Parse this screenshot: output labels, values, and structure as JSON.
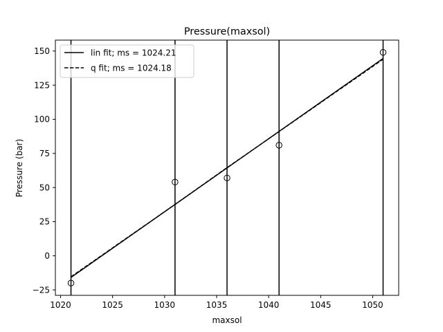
{
  "chart_data": {
    "type": "line",
    "title": "Pressure(maxsol)",
    "xlabel": "maxsol",
    "ylabel": "Pressure (bar)",
    "xlim": [
      1019.5,
      1052.5
    ],
    "ylim": [
      -29,
      158
    ],
    "xticks": [
      1020,
      1025,
      1030,
      1035,
      1040,
      1045,
      1050
    ],
    "yticks": [
      -25,
      0,
      25,
      50,
      75,
      100,
      125,
      150
    ],
    "grid": false,
    "legend_position": "top-left",
    "points": {
      "x": [
        1021,
        1031,
        1036,
        1041,
        1051
      ],
      "y": [
        -20,
        54,
        57,
        81,
        149
      ]
    },
    "vlines": [
      1021,
      1031,
      1036,
      1041,
      1051
    ],
    "series": [
      {
        "name": "lin fit; ms = 1024.21",
        "style": "solid",
        "x": [
          1021,
          1051
        ],
        "y": [
          -15.9,
          144.6
        ]
      },
      {
        "name": "q fit; ms = 1024.18",
        "style": "dashed",
        "x": [
          1021,
          1031,
          1036,
          1041,
          1051
        ],
        "y": [
          -15.4,
          37.6,
          64.6,
          91.0,
          144.0
        ]
      }
    ]
  }
}
